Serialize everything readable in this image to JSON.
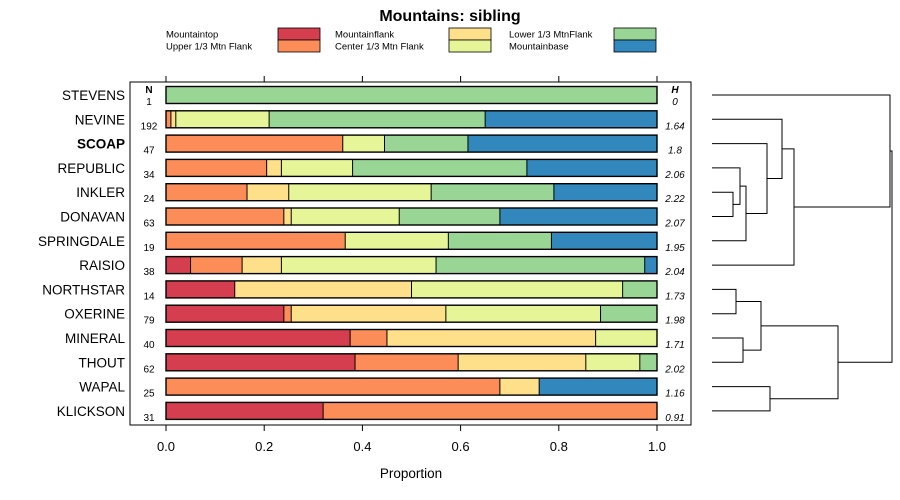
{
  "chart_data": {
    "type": "bar",
    "orientation": "horizontal",
    "stacked": true,
    "title": "Mountains: sibling",
    "xlabel": "Proportion",
    "xlim": [
      0,
      1
    ],
    "x_ticks": [
      "0.0",
      "0.2",
      "0.4",
      "0.6",
      "0.8",
      "1.0"
    ],
    "n_header": "N",
    "h_header": "H",
    "categories_legend": [
      {
        "name": "Mountaintop",
        "color": "#d53e4f"
      },
      {
        "name": "Upper 1/3 Mtn Flank",
        "color": "#fc8d59"
      },
      {
        "name": "Mountainflank",
        "color": "#fee08b"
      },
      {
        "name": "Center 1/3 Mtn Flank",
        "color": "#e6f598"
      },
      {
        "name": "Lower 1/3 MtnFlank",
        "color": "#99d594"
      },
      {
        "name": "Mountainbase",
        "color": "#3288bd"
      }
    ],
    "rows": [
      {
        "label": "STEVENS",
        "n": "1",
        "h": "0",
        "bold": false,
        "values": [
          0,
          0,
          0,
          0,
          1.0,
          0
        ]
      },
      {
        "label": "NEVINE",
        "n": "192",
        "h": "1.64",
        "bold": false,
        "values": [
          0,
          0.01,
          0.01,
          0.19,
          0.44,
          0.35
        ]
      },
      {
        "label": "SCOAP",
        "n": "47",
        "h": "1.8",
        "bold": true,
        "values": [
          0,
          0.36,
          0,
          0.085,
          0.17,
          0.385
        ]
      },
      {
        "label": "REPUBLIC",
        "n": "34",
        "h": "2.06",
        "bold": false,
        "values": [
          0,
          0.205,
          0.03,
          0.145,
          0.355,
          0.265
        ]
      },
      {
        "label": "INKLER",
        "n": "24",
        "h": "2.22",
        "bold": false,
        "values": [
          0,
          0.165,
          0.085,
          0.29,
          0.25,
          0.21
        ]
      },
      {
        "label": "DONAVAN",
        "n": "63",
        "h": "2.07",
        "bold": false,
        "values": [
          0,
          0.24,
          0.015,
          0.22,
          0.205,
          0.32
        ]
      },
      {
        "label": "SPRINGDALE",
        "n": "19",
        "h": "1.95",
        "bold": false,
        "values": [
          0,
          0.365,
          0,
          0.21,
          0.21,
          0.215
        ]
      },
      {
        "label": "RAISIO",
        "n": "38",
        "h": "2.04",
        "bold": false,
        "values": [
          0.05,
          0.105,
          0.08,
          0.315,
          0.425,
          0.025
        ]
      },
      {
        "label": "NORTHSTAR",
        "n": "14",
        "h": "1.73",
        "bold": false,
        "values": [
          0.14,
          0,
          0.36,
          0.43,
          0.07,
          0
        ]
      },
      {
        "label": "OXERINE",
        "n": "79",
        "h": "1.98",
        "bold": false,
        "values": [
          0.24,
          0.015,
          0.315,
          0.315,
          0.115,
          0
        ]
      },
      {
        "label": "MINERAL",
        "n": "40",
        "h": "1.71",
        "bold": false,
        "values": [
          0.375,
          0.075,
          0.425,
          0.125,
          0,
          0
        ]
      },
      {
        "label": "THOUT",
        "n": "62",
        "h": "2.02",
        "bold": false,
        "values": [
          0.385,
          0.21,
          0.26,
          0.11,
          0.035,
          0
        ]
      },
      {
        "label": "WAPAL",
        "n": "25",
        "h": "1.16",
        "bold": false,
        "values": [
          0,
          0.68,
          0.08,
          0,
          0,
          0.24
        ]
      },
      {
        "label": "KLICKSON",
        "n": "31",
        "h": "0.91",
        "bold": false,
        "values": [
          0.32,
          0.68,
          0,
          0,
          0,
          0
        ]
      }
    ]
  }
}
